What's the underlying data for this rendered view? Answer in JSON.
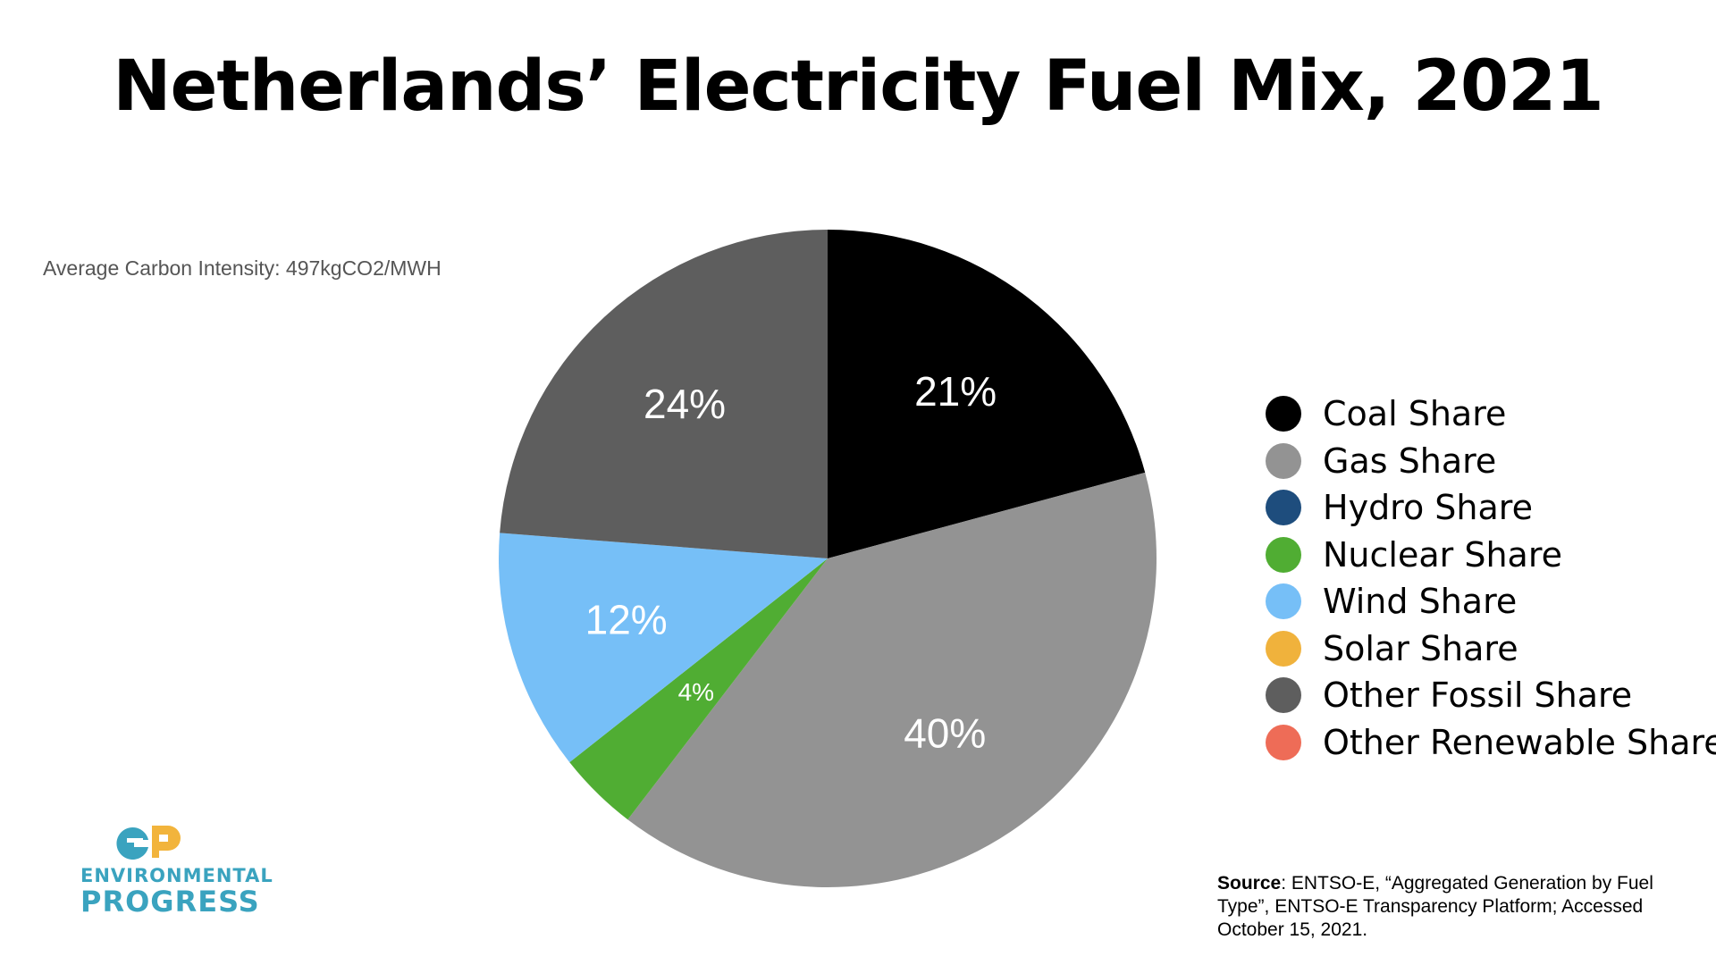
{
  "title": "Netherlands’ Electricity Fuel Mix, 2021",
  "note": "Average Carbon Intensity: 497kgCO2/MWH",
  "chart_data": {
    "type": "pie",
    "title": "Netherlands’ Electricity Fuel Mix, 2021",
    "legend_position": "right",
    "slices": [
      {
        "name": "Coal Share",
        "value": 21,
        "label": "21%",
        "color": "#000000"
      },
      {
        "name": "Gas Share",
        "value": 40,
        "label": "40%",
        "color": "#939393"
      },
      {
        "name": "Nuclear Share",
        "value": 4,
        "label": "4%",
        "color": "#50ad33"
      },
      {
        "name": "Wind Share",
        "value": 12,
        "label": "12%",
        "color": "#76bff7"
      },
      {
        "name": "Other Fossil Share",
        "value": 24,
        "label": "24%",
        "color": "#5e5e5e"
      }
    ],
    "legend": [
      {
        "name": "Coal Share",
        "color": "#000000"
      },
      {
        "name": "Gas Share",
        "color": "#939393"
      },
      {
        "name": "Hydro Share",
        "color": "#1e4d7d"
      },
      {
        "name": "Nuclear Share",
        "color": "#50ad33"
      },
      {
        "name": "Wind Share",
        "color": "#76bff7"
      },
      {
        "name": "Solar Share",
        "color": "#f0b23c"
      },
      {
        "name": "Other Fossil Share",
        "color": "#5e5e5e"
      },
      {
        "name": "Other Renewable Share",
        "color": "#ee6c57"
      }
    ]
  },
  "source": {
    "key": "Source",
    "text": ": ENTSO-E, “Aggregated Generation by Fuel Type”, ENTSO-E Transparency Platform; Accessed October 15, 2021."
  },
  "logo": {
    "line1": "ENVIRONMENTAL",
    "line2": "PROGRESS",
    "colors": {
      "primary": "#3aa3bf",
      "secondary": "#f2b43c"
    }
  }
}
